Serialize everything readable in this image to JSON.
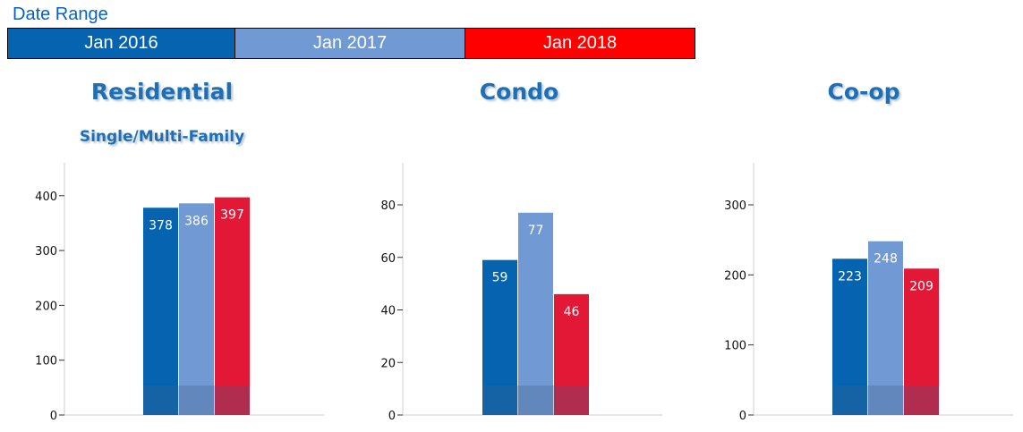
{
  "header": {
    "date_range_label": "Date Range"
  },
  "legend": [
    {
      "label": "Jan 2016",
      "color": "#0563b0",
      "text_color": "#ffffff"
    },
    {
      "label": "Jan 2017",
      "color": "#7199d3",
      "text_color": "#ffffff"
    },
    {
      "label": "Jan 2018",
      "color": "#ff0000",
      "text_color": "#ffffff"
    }
  ],
  "series_colors": [
    "#0563b0",
    "#7199d3",
    "#e31837"
  ],
  "chart_data": [
    {
      "type": "bar",
      "title": "Residential",
      "subtitle": "Single/Multi-Family",
      "categories": [
        "Jan 2016",
        "Jan 2017",
        "Jan 2018"
      ],
      "values": [
        378,
        386,
        397
      ],
      "ylim": [
        0,
        460
      ],
      "yticks": [
        0,
        100,
        200,
        300,
        400
      ],
      "grid": false
    },
    {
      "type": "bar",
      "title": "Condo",
      "subtitle": "",
      "categories": [
        "Jan 2016",
        "Jan 2017",
        "Jan 2018"
      ],
      "values": [
        59,
        77,
        46
      ],
      "ylim": [
        0,
        96
      ],
      "yticks": [
        0,
        20,
        40,
        60,
        80
      ],
      "grid": false
    },
    {
      "type": "bar",
      "title": "Co-op",
      "subtitle": "",
      "categories": [
        "Jan 2016",
        "Jan 2017",
        "Jan 2018"
      ],
      "values": [
        223,
        248,
        209
      ],
      "ylim": [
        0,
        360
      ],
      "yticks": [
        0,
        100,
        200,
        300
      ],
      "grid": false
    }
  ]
}
